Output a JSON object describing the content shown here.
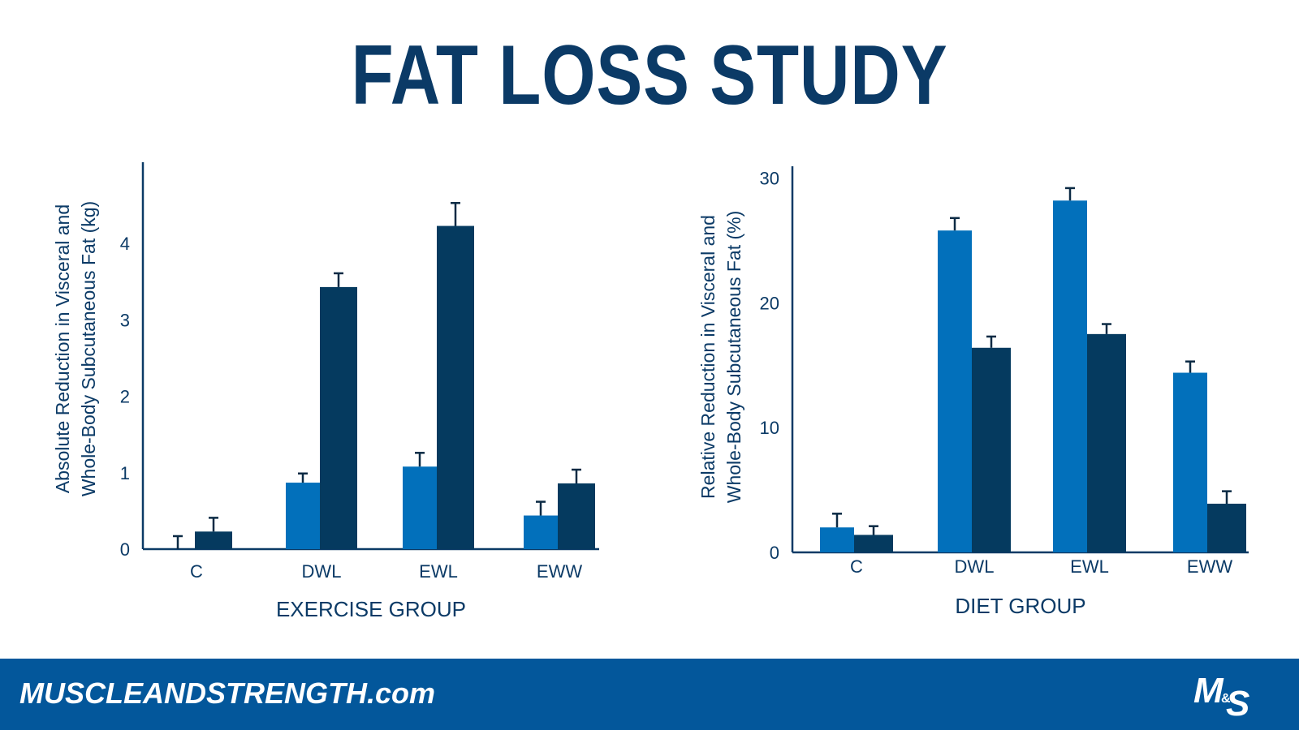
{
  "title": "FAT LOSS STUDY",
  "footer": {
    "site": "MUSCLEANDSTRENGTH.com",
    "logo_text": "M&S"
  },
  "colors": {
    "light": "#0270bb",
    "dark": "#053a5f",
    "title": "#0b3a66",
    "footer_bg": "#03579b"
  },
  "chart_data": [
    {
      "type": "bar",
      "xlabel": "EXERCISE GROUP",
      "ylabel_lines": [
        "Absolute Reduction in Visceral and",
        "Whole-Body Subcutaneous Fat (kg)"
      ],
      "categories": [
        "C",
        "DWL",
        "EWL",
        "EWW"
      ],
      "ylim": [
        0,
        5
      ],
      "yticks": [
        0,
        1,
        2,
        3,
        4
      ],
      "series": [
        {
          "values": [
            0,
            0.87,
            1.08,
            0.44
          ],
          "errors": [
            0.17,
            0.12,
            0.18,
            0.18
          ]
        },
        {
          "values": [
            0.23,
            3.43,
            4.23,
            0.86
          ],
          "errors": [
            0.18,
            0.18,
            0.3,
            0.18
          ]
        }
      ]
    },
    {
      "type": "bar",
      "xlabel": "DIET GROUP",
      "ylabel_lines": [
        "Relative Reduction in Visceral and",
        "Whole-Body Subcutaneous Fat (%)"
      ],
      "categories": [
        "C",
        "DWL",
        "EWL",
        "EWW"
      ],
      "ylim": [
        0,
        31
      ],
      "yticks": [
        0,
        10,
        20,
        30
      ],
      "series": [
        {
          "values": [
            2.0,
            25.8,
            28.2,
            14.4
          ],
          "errors": [
            1.1,
            1.0,
            1.0,
            0.9
          ]
        },
        {
          "values": [
            1.4,
            16.4,
            17.5,
            3.9
          ],
          "errors": [
            0.7,
            0.9,
            0.8,
            1.0
          ]
        }
      ]
    }
  ]
}
